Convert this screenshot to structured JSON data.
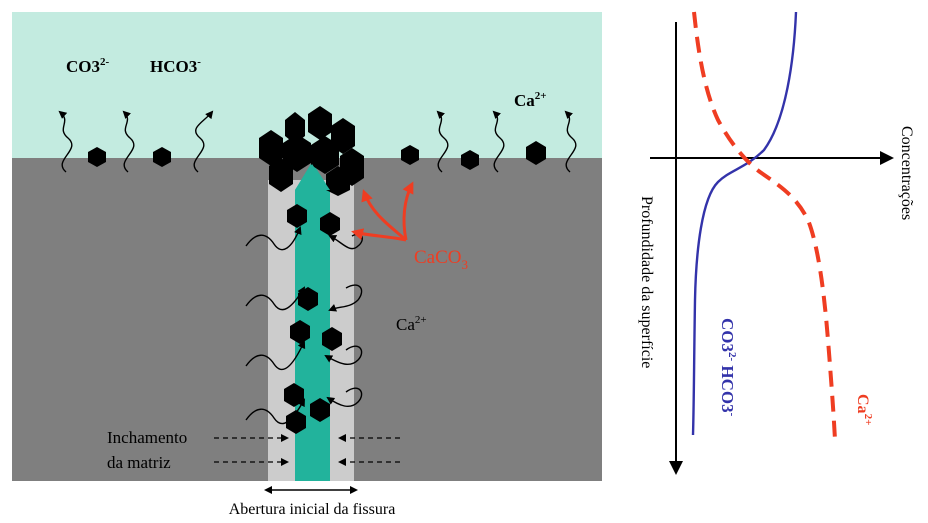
{
  "left_panel": {
    "top_ions": {
      "co3": "CO3",
      "co3_charge": "2-",
      "hco3": "HCO3",
      "hco3_charge": "-"
    },
    "ca_top": {
      "base": "Ca",
      "charge": "2+"
    },
    "caco3": {
      "base": "CaCO",
      "sub": "3"
    },
    "ca_mid": {
      "base": "Ca",
      "charge": "2+"
    },
    "swelling_label": {
      "line1": "Inchamento",
      "line2": "da matriz"
    },
    "crack_width_label": "Abertura inicial da fissura",
    "colors": {
      "water": "#c3ebe0",
      "matrix": "#7f7f7f",
      "crack_band": "#cccccc",
      "crack_fill": "#22b39c",
      "crystal": "#000000",
      "annotation": "#ef3d22"
    }
  },
  "right_panel": {
    "x_axis_label": "Concentrações",
    "y_axis_label": "Profundidade da superfície",
    "co3_curve_label": {
      "co3": "CO3",
      "co3_charge": "2-",
      "hco3": "HCO3",
      "hco3_charge": "-"
    },
    "ca_curve_label": {
      "base": "Ca",
      "charge": "2+"
    },
    "colors": {
      "co3_curve": "#3333aa",
      "ca_curve": "#ef3d22"
    }
  }
}
